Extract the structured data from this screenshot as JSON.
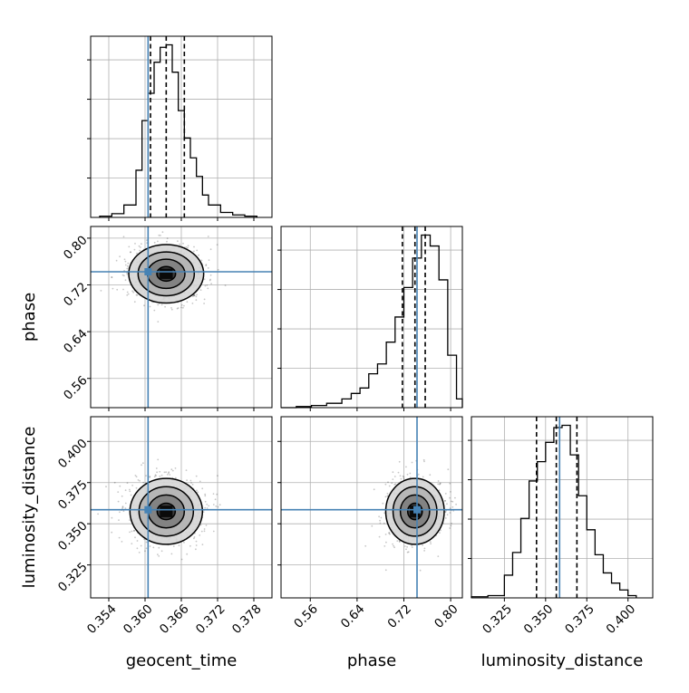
{
  "colors": {
    "truth": "#4682b4",
    "hist": "#000000",
    "grid": "#b0b0b0"
  },
  "chart_data": {
    "type": "corner",
    "parameters": [
      {
        "name": "geocent_time",
        "label": "geocent_time",
        "range": [
          0.351,
          0.381
        ],
        "ticks": [
          "0.354",
          "0.360",
          "0.366",
          "0.372",
          "0.378"
        ]
      },
      {
        "name": "phase",
        "label": "phase",
        "range": [
          0.51,
          0.82
        ],
        "ticks": [
          "0.56",
          "0.64",
          "0.72",
          "0.80"
        ]
      },
      {
        "name": "luminosity_distance",
        "label": "luminosity_distance",
        "range": [
          0.305,
          0.415
        ],
        "ticks": [
          "0.325",
          "0.350",
          "0.375",
          "0.400"
        ]
      }
    ],
    "truths": [
      0.3605,
      0.7425,
      0.3585
    ],
    "quantiles": [
      [
        0.3609,
        0.3635,
        0.3665
      ],
      [
        0.7175,
        0.739,
        0.7565
      ],
      [
        0.3445,
        0.3565,
        0.369
      ]
    ],
    "histograms": [
      {
        "edges": [
          0.3525,
          0.3545,
          0.3565,
          0.3585,
          0.3595,
          0.3605,
          0.3615,
          0.3625,
          0.3635,
          0.3645,
          0.3655,
          0.3665,
          0.3675,
          0.3685,
          0.3695,
          0.3705,
          0.3725,
          0.3745,
          0.3765,
          0.3785
        ],
        "counts": [
          1,
          3,
          10,
          38,
          78,
          100,
          125,
          137,
          139,
          117,
          86,
          64,
          48,
          33,
          18,
          10,
          4,
          2,
          1
        ]
      },
      {
        "edges": [
          0.51,
          0.536,
          0.562,
          0.588,
          0.614,
          0.63,
          0.645,
          0.66,
          0.675,
          0.69,
          0.705,
          0.72,
          0.735,
          0.75,
          0.765,
          0.78,
          0.795,
          0.81,
          0.82
        ],
        "counts": [
          0,
          1,
          2,
          4,
          8,
          13,
          18,
          31,
          40,
          60,
          83,
          110,
          137,
          158,
          148,
          117,
          48,
          8
        ]
      },
      {
        "edges": [
          0.305,
          0.315,
          0.325,
          0.33,
          0.335,
          0.34,
          0.345,
          0.35,
          0.355,
          0.36,
          0.365,
          0.37,
          0.375,
          0.38,
          0.385,
          0.39,
          0.395,
          0.4,
          0.405
        ],
        "counts": [
          1,
          2,
          20,
          40,
          70,
          103,
          120,
          137,
          150,
          152,
          126,
          90,
          60,
          38,
          22,
          13,
          7,
          2
        ]
      }
    ],
    "pairs": [
      {
        "x": "geocent_time",
        "y": "phase",
        "center": [
          0.3635,
          0.739
        ],
        "sd": [
          0.0031,
          0.025
        ],
        "rho": 0
      },
      {
        "x": "geocent_time",
        "y": "luminosity_distance",
        "center": [
          0.3635,
          0.3575
        ],
        "sd": [
          0.003,
          0.01
        ],
        "rho": 0
      },
      {
        "x": "phase",
        "y": "luminosity_distance",
        "center": [
          0.739,
          0.3575
        ],
        "sd": [
          0.025,
          0.01
        ],
        "rho": 0
      }
    ],
    "xlabels": [
      "geocent_time",
      "phase",
      "luminosity_distance"
    ],
    "ylabels": [
      "",
      "phase",
      "luminosity_distance"
    ],
    "grid": true,
    "title": ""
  }
}
